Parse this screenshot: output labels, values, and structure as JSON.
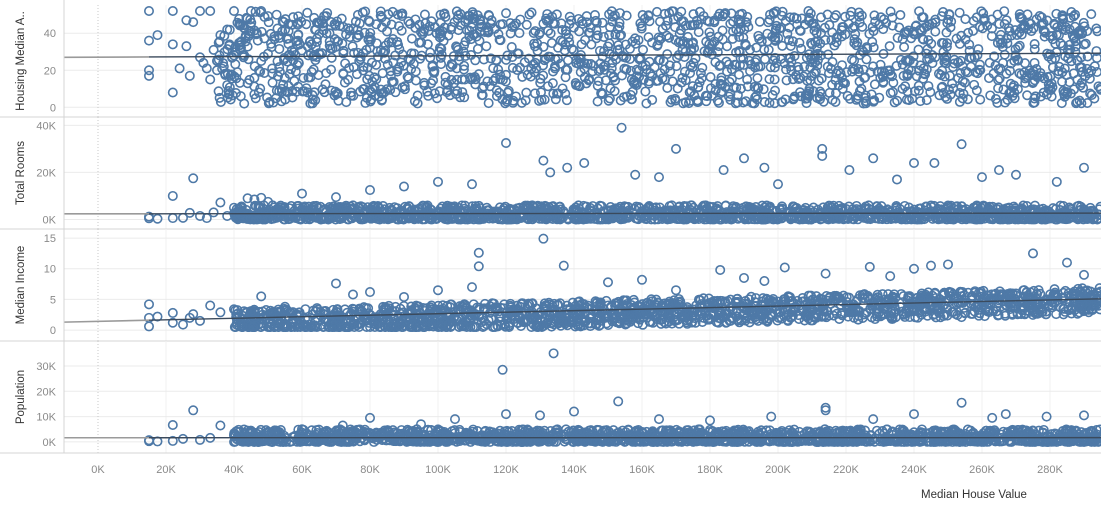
{
  "chart_data": {
    "type": "scatter",
    "layout": "small-multiples (4 rows, shared x axis)",
    "xlabel": "Median House Value",
    "xlim": [
      -10000,
      295000
    ],
    "x_ticks": [
      {
        "v": 0,
        "label": "0K"
      },
      {
        "v": 20000,
        "label": "20K"
      },
      {
        "v": 40000,
        "label": "40K"
      },
      {
        "v": 60000,
        "label": "60K"
      },
      {
        "v": 80000,
        "label": "80K"
      },
      {
        "v": 100000,
        "label": "100K"
      },
      {
        "v": 120000,
        "label": "120K"
      },
      {
        "v": 140000,
        "label": "140K"
      },
      {
        "v": 160000,
        "label": "160K"
      },
      {
        "v": 180000,
        "label": "180K"
      },
      {
        "v": 200000,
        "label": "200K"
      },
      {
        "v": 220000,
        "label": "220K"
      },
      {
        "v": 240000,
        "label": "240K"
      },
      {
        "v": 260000,
        "label": "260K"
      },
      {
        "v": 280000,
        "label": "280K"
      }
    ],
    "marker": "hollow circle",
    "marker_color": "#4e79a7",
    "trend_color": "#3b4a5c",
    "trend_ext_color": "#9a9a9a",
    "grid": true,
    "panels": [
      {
        "ylabel": "Housing Median A..",
        "ylim": [
          -2,
          52
        ],
        "y_ticks": [
          {
            "v": 0,
            "label": "0"
          },
          {
            "v": 20,
            "label": "20"
          },
          {
            "v": 40,
            "label": "40"
          }
        ],
        "dense_band": [
          2,
          52
        ],
        "trend": [
          [
            -10000,
            27.0
          ],
          [
            295000,
            29.2
          ]
        ],
        "points": [
          [
            15000,
            52
          ],
          [
            15000,
            36
          ],
          [
            15000,
            20
          ],
          [
            15000,
            17
          ],
          [
            17500,
            39
          ],
          [
            22000,
            52
          ],
          [
            22000,
            34
          ],
          [
            22000,
            8
          ],
          [
            24000,
            21
          ],
          [
            26000,
            33
          ],
          [
            26000,
            47
          ],
          [
            27000,
            17
          ],
          [
            28000,
            46
          ],
          [
            30000,
            52
          ],
          [
            30000,
            27
          ],
          [
            31000,
            24
          ],
          [
            32000,
            21
          ],
          [
            33000,
            52
          ],
          [
            33000,
            15
          ],
          [
            34000,
            31
          ],
          [
            35000,
            20
          ],
          [
            35000,
            25
          ],
          [
            36000,
            39
          ],
          [
            37000,
            22
          ],
          [
            38000,
            12
          ],
          [
            38000,
            42
          ],
          [
            39000,
            17
          ],
          [
            40000,
            52
          ],
          [
            40000,
            28
          ],
          [
            41000,
            19
          ],
          [
            42000,
            35
          ],
          [
            42000,
            6
          ],
          [
            43000,
            2
          ],
          [
            43000,
            43
          ],
          [
            44000,
            13
          ],
          [
            45000,
            52
          ],
          [
            46000,
            7
          ],
          [
            47000,
            36
          ],
          [
            48000,
            52
          ],
          [
            48000,
            25
          ]
        ]
      },
      {
        "ylabel": "Total Rooms",
        "ylim": [
          -1500,
          41000
        ],
        "y_ticks": [
          {
            "v": 0,
            "label": "0K"
          },
          {
            "v": 20000,
            "label": "20K"
          },
          {
            "v": 40000,
            "label": "40K"
          }
        ],
        "dense_band": [
          0,
          6000
        ],
        "trend": [
          [
            -10000,
            2400
          ],
          [
            295000,
            2700
          ]
        ],
        "points": [
          [
            15000,
            500
          ],
          [
            15000,
            1200
          ],
          [
            17500,
            300
          ],
          [
            22000,
            600
          ],
          [
            22000,
            10000
          ],
          [
            25000,
            700
          ],
          [
            27000,
            2800
          ],
          [
            28000,
            17500
          ],
          [
            30000,
            1500
          ],
          [
            32000,
            600
          ],
          [
            34000,
            3000
          ],
          [
            36000,
            7200
          ],
          [
            38000,
            1500
          ],
          [
            40000,
            5000
          ],
          [
            42000,
            2000
          ],
          [
            44000,
            9000
          ],
          [
            46000,
            8500
          ],
          [
            48000,
            9200
          ],
          [
            50000,
            7500
          ],
          [
            120000,
            32500
          ],
          [
            131000,
            25000
          ],
          [
            133000,
            20000
          ],
          [
            138000,
            22000
          ],
          [
            143000,
            24000
          ],
          [
            154000,
            39000
          ],
          [
            158000,
            19000
          ],
          [
            170000,
            30000
          ],
          [
            184000,
            21000
          ],
          [
            190000,
            26000
          ],
          [
            196000,
            22000
          ],
          [
            213000,
            27000
          ],
          [
            213000,
            30000
          ],
          [
            221000,
            21000
          ],
          [
            228000,
            26000
          ],
          [
            240000,
            24000
          ],
          [
            246000,
            24000
          ],
          [
            254000,
            32000
          ],
          [
            265000,
            21000
          ],
          [
            270000,
            19000
          ],
          [
            282000,
            16000
          ],
          [
            290000,
            22000
          ],
          [
            60000,
            11000
          ],
          [
            70000,
            9500
          ],
          [
            80000,
            12500
          ],
          [
            90000,
            14000
          ],
          [
            100000,
            16000
          ],
          [
            110000,
            15000
          ],
          [
            165000,
            18000
          ],
          [
            200000,
            15000
          ],
          [
            235000,
            17000
          ],
          [
            260000,
            18000
          ]
        ]
      },
      {
        "ylabel": "Median Income",
        "ylim": [
          -0.8,
          15.5
        ],
        "y_ticks": [
          {
            "v": 0,
            "label": "0"
          },
          {
            "v": 5,
            "label": "5"
          },
          {
            "v": 10,
            "label": "10"
          },
          {
            "v": 15,
            "label": "15"
          }
        ],
        "dense_band": [
          0.5,
          7
        ],
        "trend": [
          [
            -10000,
            1.3
          ],
          [
            295000,
            5.1
          ]
        ],
        "points": [
          [
            15000,
            4.2
          ],
          [
            15000,
            2.0
          ],
          [
            15000,
            0.6
          ],
          [
            17500,
            2.2
          ],
          [
            22000,
            2.8
          ],
          [
            22000,
            1.2
          ],
          [
            25000,
            0.9
          ],
          [
            27000,
            2.0
          ],
          [
            28000,
            2.6
          ],
          [
            30000,
            1.5
          ],
          [
            33000,
            4.0
          ],
          [
            36000,
            2.9
          ],
          [
            40000,
            3.4
          ],
          [
            42000,
            1.0
          ],
          [
            48000,
            5.5
          ],
          [
            55000,
            3.8
          ],
          [
            70000,
            7.6
          ],
          [
            75000,
            5.8
          ],
          [
            80000,
            6.2
          ],
          [
            90000,
            5.4
          ],
          [
            100000,
            6.5
          ],
          [
            110000,
            7.0
          ],
          [
            112000,
            12.6
          ],
          [
            112000,
            10.4
          ],
          [
            131000,
            14.9
          ],
          [
            137000,
            10.5
          ],
          [
            150000,
            7.8
          ],
          [
            160000,
            8.2
          ],
          [
            170000,
            6.5
          ],
          [
            183000,
            9.8
          ],
          [
            190000,
            8.5
          ],
          [
            196000,
            8.0
          ],
          [
            202000,
            10.2
          ],
          [
            214000,
            9.2
          ],
          [
            227000,
            10.3
          ],
          [
            233000,
            8.8
          ],
          [
            240000,
            10.0
          ],
          [
            245000,
            10.5
          ],
          [
            250000,
            10.7
          ],
          [
            275000,
            12.5
          ],
          [
            285000,
            11.0
          ],
          [
            290000,
            9.0
          ]
        ]
      },
      {
        "ylabel": "Population",
        "ylim": [
          -2000,
          37500
        ],
        "y_ticks": [
          {
            "v": 0,
            "label": "0K"
          },
          {
            "v": 10000,
            "label": "10K"
          },
          {
            "v": 20000,
            "label": "20K"
          },
          {
            "v": 30000,
            "label": "30K"
          }
        ],
        "dense_band": [
          0,
          5000
        ],
        "trend": [
          [
            -10000,
            1650
          ],
          [
            295000,
            1700
          ]
        ],
        "points": [
          [
            15000,
            300
          ],
          [
            15000,
            700
          ],
          [
            17500,
            200
          ],
          [
            22000,
            400
          ],
          [
            22000,
            6700
          ],
          [
            25000,
            1200
          ],
          [
            28000,
            12500
          ],
          [
            30000,
            800
          ],
          [
            33000,
            1600
          ],
          [
            36000,
            6500
          ],
          [
            40000,
            2500
          ],
          [
            45000,
            3200
          ],
          [
            50000,
            4000
          ],
          [
            60000,
            5000
          ],
          [
            72000,
            6500
          ],
          [
            80000,
            9500
          ],
          [
            95000,
            7000
          ],
          [
            105000,
            9000
          ],
          [
            119000,
            28500
          ],
          [
            120000,
            11000
          ],
          [
            134000,
            35000
          ],
          [
            130000,
            10500
          ],
          [
            140000,
            12000
          ],
          [
            153000,
            16000
          ],
          [
            165000,
            9000
          ],
          [
            180000,
            8500
          ],
          [
            198000,
            10000
          ],
          [
            214000,
            13500
          ],
          [
            214000,
            12500
          ],
          [
            228000,
            9000
          ],
          [
            240000,
            11000
          ],
          [
            254000,
            15500
          ],
          [
            263000,
            9500
          ],
          [
            267000,
            11000
          ],
          [
            279000,
            10000
          ],
          [
            290000,
            10500
          ]
        ]
      }
    ]
  }
}
